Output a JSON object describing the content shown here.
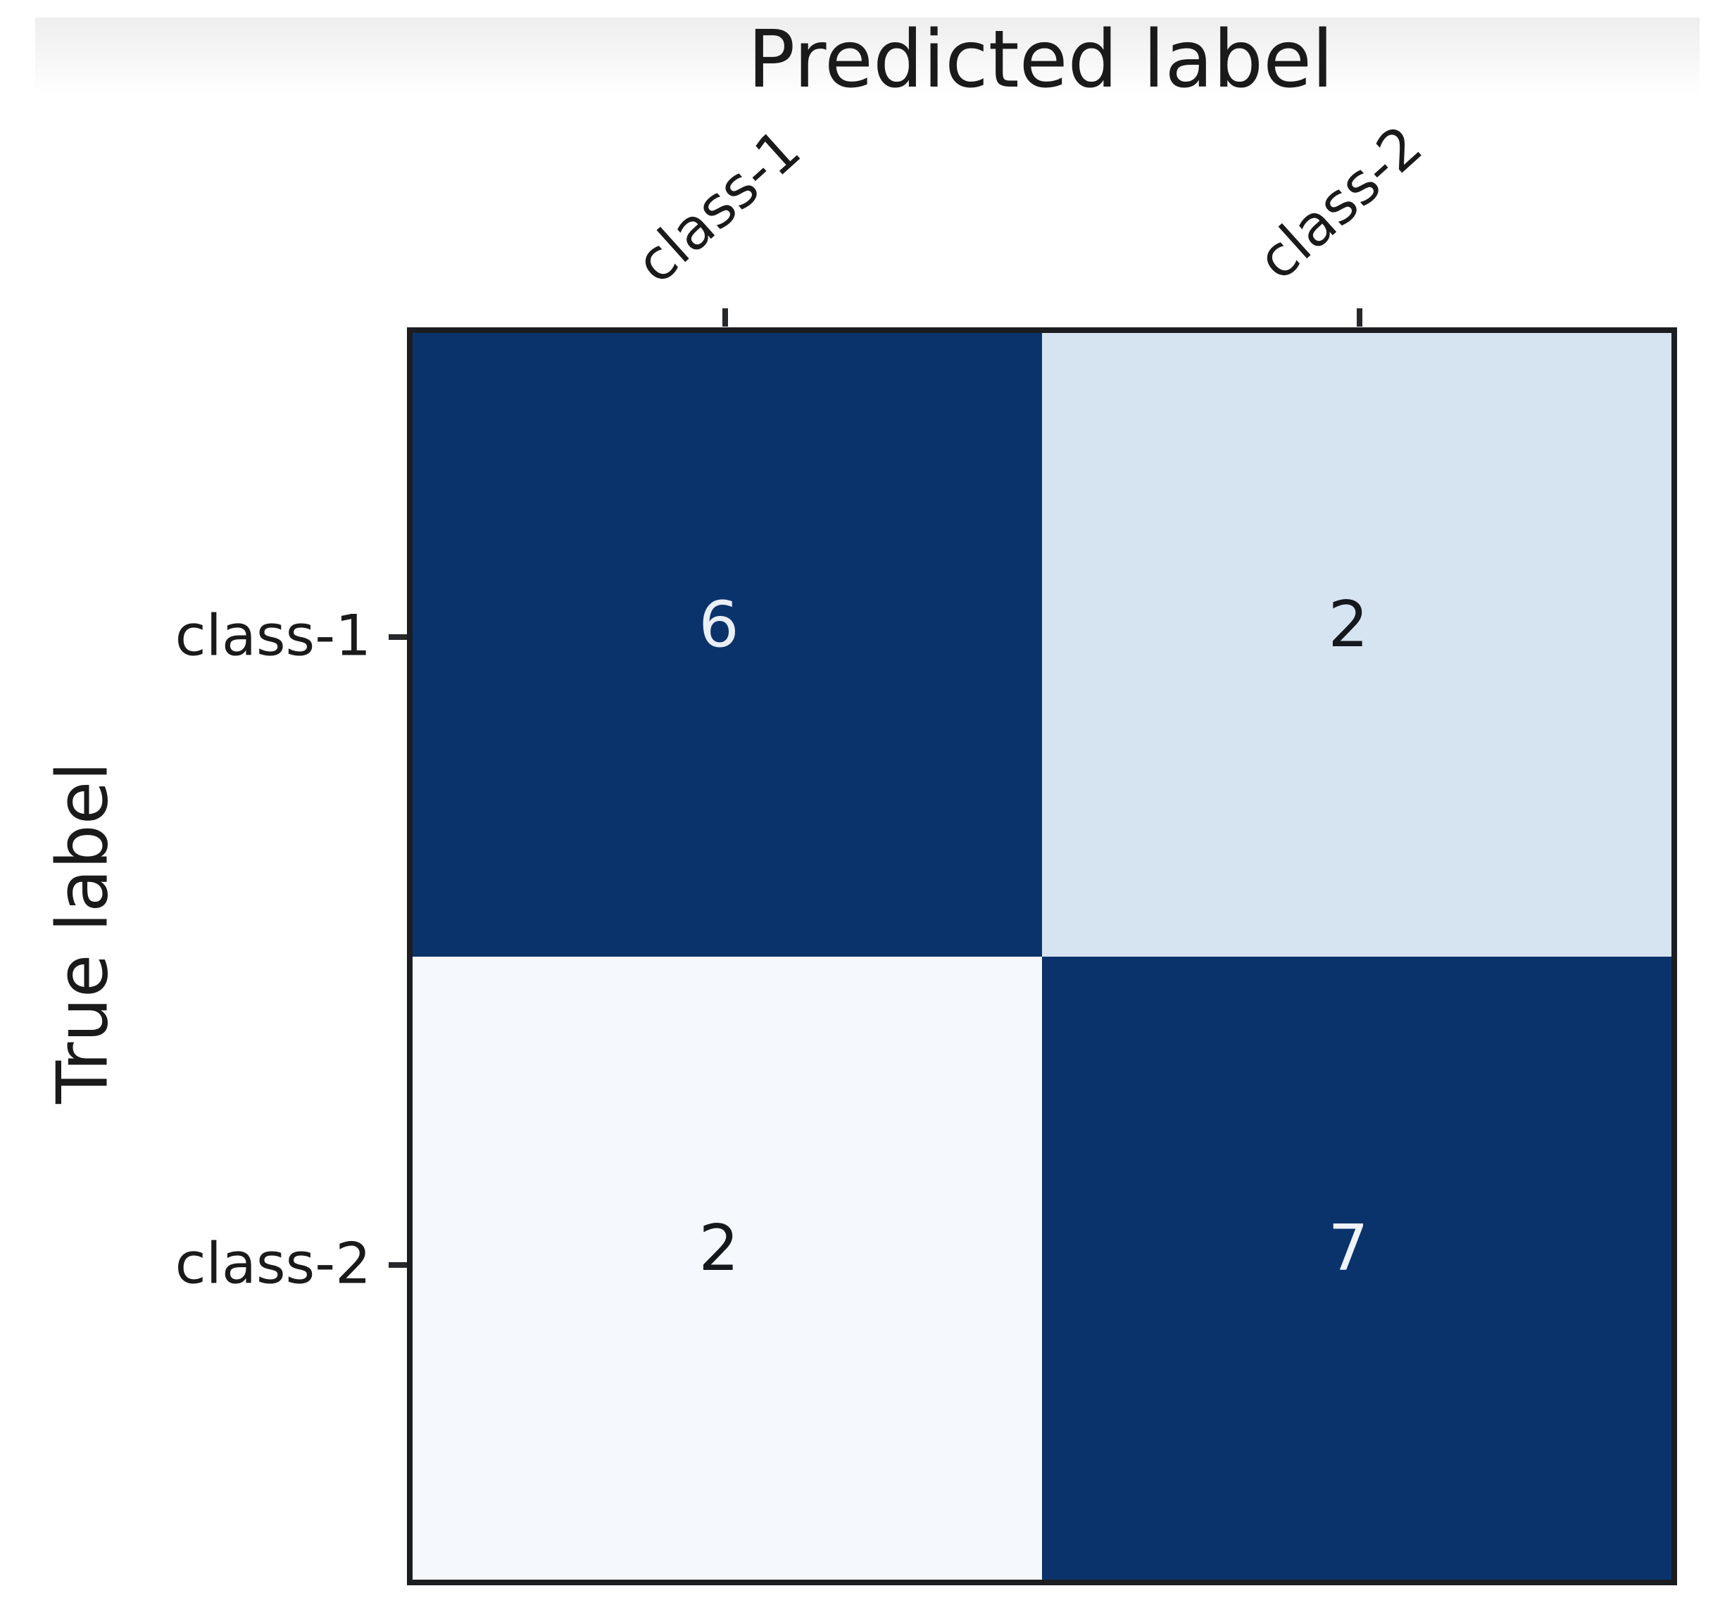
{
  "chart_data": {
    "type": "heatmap",
    "subtype": "confusion-matrix",
    "xlabel": "Predicted label",
    "ylabel": "True label",
    "x_categories": [
      "class-1",
      "class-2"
    ],
    "y_categories": [
      "class-1",
      "class-2"
    ],
    "matrix": [
      [
        6,
        2
      ],
      [
        2,
        7
      ]
    ],
    "grid": false,
    "legend": "none",
    "colors": {
      "cell_dark_navy": "#0a336b",
      "cell_light_blue": "#d6e4f2",
      "cell_near_white": "#f5f8fd",
      "axis_border": "#1b1d21",
      "text": "#1a1a1a",
      "light_cell_text": "#e9eef7",
      "dark_cell_text": "#15181d",
      "top_band_gray": "#eeeeee"
    },
    "cells": [
      {
        "row": "class-1",
        "col": "class-1",
        "value": "6",
        "bg": "#0a336b",
        "fg": "#e9eef7"
      },
      {
        "row": "class-1",
        "col": "class-2",
        "value": "2",
        "bg": "#d6e4f2",
        "fg": "#15181d"
      },
      {
        "row": "class-2",
        "col": "class-1",
        "value": "2",
        "bg": "#f5f8fd",
        "fg": "#15181d"
      },
      {
        "row": "class-2",
        "col": "class-2",
        "value": "7",
        "bg": "#0a336b",
        "fg": "#eff3fa"
      }
    ]
  }
}
